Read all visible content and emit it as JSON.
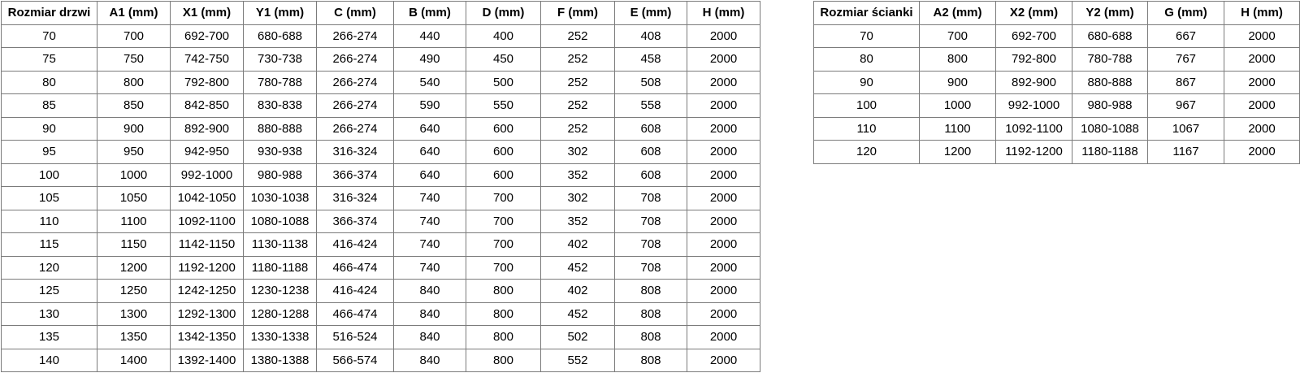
{
  "door_table": {
    "headers": [
      "Rozmiar drzwi",
      "A1 (mm)",
      "X1 (mm)",
      "Y1 (mm)",
      "C (mm)",
      "B (mm)",
      "D (mm)",
      "F (mm)",
      "E (mm)",
      "H (mm)"
    ],
    "rows": [
      [
        "70",
        "700",
        "692-700",
        "680-688",
        "266-274",
        "440",
        "400",
        "252",
        "408",
        "2000"
      ],
      [
        "75",
        "750",
        "742-750",
        "730-738",
        "266-274",
        "490",
        "450",
        "252",
        "458",
        "2000"
      ],
      [
        "80",
        "800",
        "792-800",
        "780-788",
        "266-274",
        "540",
        "500",
        "252",
        "508",
        "2000"
      ],
      [
        "85",
        "850",
        "842-850",
        "830-838",
        "266-274",
        "590",
        "550",
        "252",
        "558",
        "2000"
      ],
      [
        "90",
        "900",
        "892-900",
        "880-888",
        "266-274",
        "640",
        "600",
        "252",
        "608",
        "2000"
      ],
      [
        "95",
        "950",
        "942-950",
        "930-938",
        "316-324",
        "640",
        "600",
        "302",
        "608",
        "2000"
      ],
      [
        "100",
        "1000",
        "992-1000",
        "980-988",
        "366-374",
        "640",
        "600",
        "352",
        "608",
        "2000"
      ],
      [
        "105",
        "1050",
        "1042-1050",
        "1030-1038",
        "316-324",
        "740",
        "700",
        "302",
        "708",
        "2000"
      ],
      [
        "110",
        "1100",
        "1092-1100",
        "1080-1088",
        "366-374",
        "740",
        "700",
        "352",
        "708",
        "2000"
      ],
      [
        "115",
        "1150",
        "1142-1150",
        "1130-1138",
        "416-424",
        "740",
        "700",
        "402",
        "708",
        "2000"
      ],
      [
        "120",
        "1200",
        "1192-1200",
        "1180-1188",
        "466-474",
        "740",
        "700",
        "452",
        "708",
        "2000"
      ],
      [
        "125",
        "1250",
        "1242-1250",
        "1230-1238",
        "416-424",
        "840",
        "800",
        "402",
        "808",
        "2000"
      ],
      [
        "130",
        "1300",
        "1292-1300",
        "1280-1288",
        "466-474",
        "840",
        "800",
        "452",
        "808",
        "2000"
      ],
      [
        "135",
        "1350",
        "1342-1350",
        "1330-1338",
        "516-524",
        "840",
        "800",
        "502",
        "808",
        "2000"
      ],
      [
        "140",
        "1400",
        "1392-1400",
        "1380-1388",
        "566-574",
        "840",
        "800",
        "552",
        "808",
        "2000"
      ]
    ]
  },
  "wall_table": {
    "headers": [
      "Rozmiar ścianki",
      "A2 (mm)",
      "X2 (mm)",
      "Y2 (mm)",
      "G (mm)",
      "H (mm)"
    ],
    "rows": [
      [
        "70",
        "700",
        "692-700",
        "680-688",
        "667",
        "2000"
      ],
      [
        "80",
        "800",
        "792-800",
        "780-788",
        "767",
        "2000"
      ],
      [
        "90",
        "900",
        "892-900",
        "880-888",
        "867",
        "2000"
      ],
      [
        "100",
        "1000",
        "992-1000",
        "980-988",
        "967",
        "2000"
      ],
      [
        "110",
        "1100",
        "1092-1100",
        "1080-1088",
        "1067",
        "2000"
      ],
      [
        "120",
        "1200",
        "1192-1200",
        "1180-1188",
        "1167",
        "2000"
      ]
    ]
  },
  "colors": {
    "border": "#7b7b7b",
    "text": "#000000",
    "background": "#ffffff"
  }
}
